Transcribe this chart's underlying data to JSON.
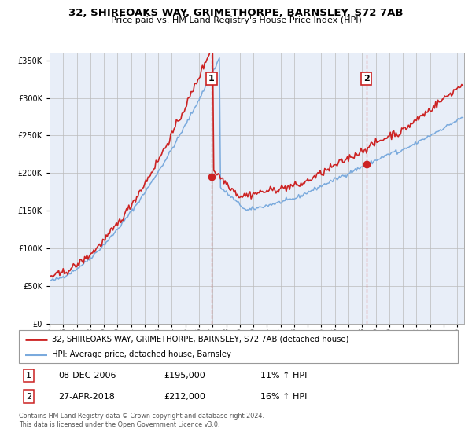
{
  "title": "32, SHIREOAKS WAY, GRIMETHORPE, BARNSLEY, S72 7AB",
  "subtitle": "Price paid vs. HM Land Registry's House Price Index (HPI)",
  "legend_line1": "32, SHIREOAKS WAY, GRIMETHORPE, BARNSLEY, S72 7AB (detached house)",
  "legend_line2": "HPI: Average price, detached house, Barnsley",
  "transaction1_date": "08-DEC-2006",
  "transaction1_price": "£195,000",
  "transaction1_hpi": "11% ↑ HPI",
  "transaction2_date": "27-APR-2018",
  "transaction2_price": "£212,000",
  "transaction2_hpi": "16% ↑ HPI",
  "footer_line1": "Contains HM Land Registry data © Crown copyright and database right 2024.",
  "footer_line2": "This data is licensed under the Open Government Licence v3.0.",
  "hpi_color": "#7aaadd",
  "price_color": "#cc2222",
  "marker_color": "#cc2222",
  "vline_color": "#dd4444",
  "background_plot": "#e8eef8",
  "background_fig": "#ffffff",
  "ylim": [
    0,
    360000
  ],
  "xlim_start": 1995.0,
  "xlim_end": 2025.5,
  "transaction1_x": 2006.93,
  "transaction1_y": 195000,
  "transaction2_x": 2018.32,
  "transaction2_y": 212000
}
